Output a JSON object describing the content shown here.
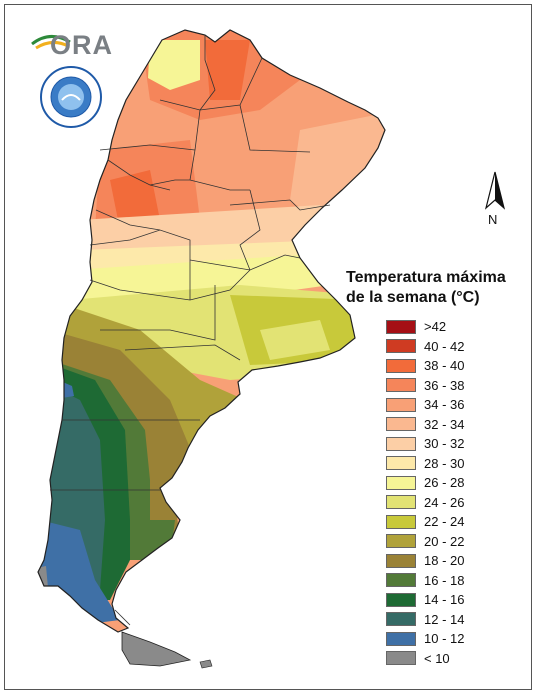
{
  "legend": {
    "title_line1": "Temperatura máxima",
    "title_line2": "de la semana (°C)",
    "items": [
      {
        "label": ">42",
        "color": "#a50f15"
      },
      {
        "label": "40 - 42",
        "color": "#cf3b22"
      },
      {
        "label": "38 - 40",
        "color": "#f26b3a"
      },
      {
        "label": "36 - 38",
        "color": "#f5855a"
      },
      {
        "label": "34 - 36",
        "color": "#f8a076"
      },
      {
        "label": "32 - 34",
        "color": "#fab890"
      },
      {
        "label": "30 - 32",
        "color": "#fccfa6"
      },
      {
        "label": "28 - 30",
        "color": "#fde9aa"
      },
      {
        "label": "26 - 28",
        "color": "#f6f596"
      },
      {
        "label": "24 - 26",
        "color": "#e2e374"
      },
      {
        "label": "22 - 24",
        "color": "#c8c93a"
      },
      {
        "label": "20 - 22",
        "color": "#b0a23a"
      },
      {
        "label": "18 - 20",
        "color": "#9a8236"
      },
      {
        "label": "16 - 18",
        "color": "#527a38"
      },
      {
        "label": "14 - 16",
        "color": "#1e6a34"
      },
      {
        "label": "12 - 14",
        "color": "#356b66"
      },
      {
        "label": "10 - 12",
        "color": "#3f70a6"
      },
      {
        "label": "< 10",
        "color": "#8a8a8a"
      }
    ]
  },
  "logo": {
    "text": "ORA"
  },
  "compass": {
    "label": "N"
  }
}
